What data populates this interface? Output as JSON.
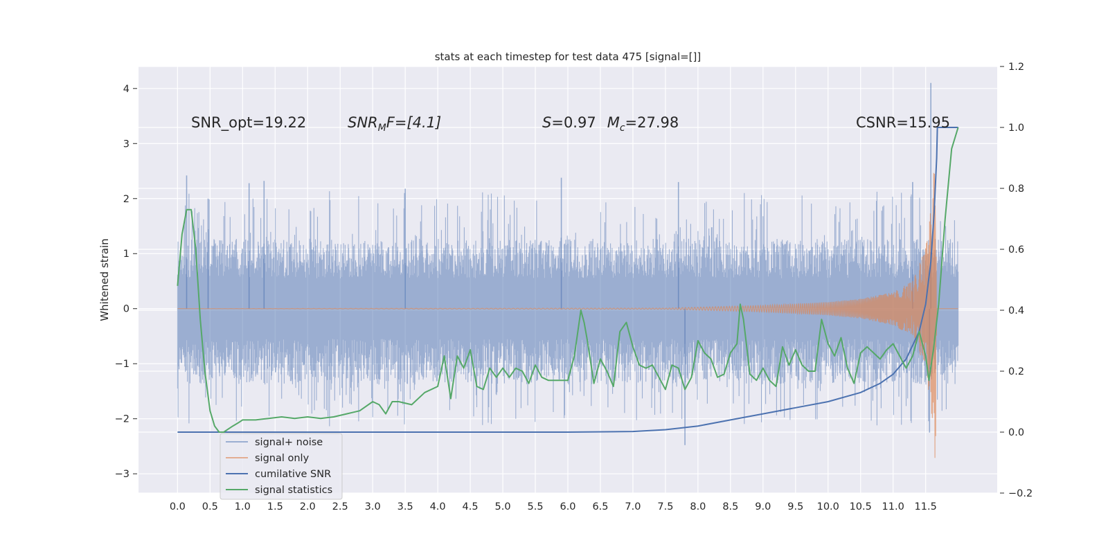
{
  "chart_data": {
    "type": "line",
    "title": "stats at each timestep for test data 475 [signal=[]]",
    "xlabel": "",
    "ylabel": "Whitened strain",
    "xlim": [
      -0.6,
      12.6
    ],
    "ylim": [
      -3.35,
      4.4
    ],
    "ylim_right": [
      -0.2,
      1.2
    ],
    "x_ticks": [
      "0.0",
      "0.5",
      "1.0",
      "1.5",
      "2.0",
      "2.5",
      "3.0",
      "3.5",
      "4.0",
      "4.5",
      "5.0",
      "5.5",
      "6.0",
      "6.5",
      "7.0",
      "7.5",
      "8.0",
      "8.5",
      "9.0",
      "9.5",
      "10.0",
      "10.5",
      "11.0",
      "11.5"
    ],
    "y_ticks_left": [
      "−3",
      "−2",
      "−1",
      "0",
      "1",
      "2",
      "3",
      "4"
    ],
    "y_ticks_right": [
      "−0.2",
      "0.0",
      "0.2",
      "0.4",
      "0.6",
      "0.8",
      "1.0",
      "1.2"
    ],
    "grid": true,
    "background": "#eaeaf2",
    "annotations": {
      "snr_opt": "SNR_opt=19.22",
      "snr_mf_base": "SNR",
      "snr_mf_sub": "M",
      "snr_mf_rest": "F=[4.1]",
      "s_var": "S",
      "s_val": "=0.97",
      "mc_var": "M",
      "mc_sub": "c",
      "mc_val": "=27.98",
      "csnr": "CSNR=15.95"
    },
    "legend": {
      "placement": "lower-left",
      "entries": [
        "signal+ noise",
        "signal only",
        "cumilative SNR",
        "signal statistics"
      ]
    },
    "colors": {
      "noise": "#4c72b0",
      "signal": "#dd8452",
      "cumulative": "#4c72b0",
      "stats": "#55a868"
    },
    "series": [
      {
        "name": "signal+ noise",
        "axis": "left",
        "style": "filled band, high-frequency noise",
        "x_range": [
          0.0,
          12.0
        ],
        "approx_band": [
          -1.4,
          1.3
        ],
        "peak_values": [
          {
            "x": 0.14,
            "y": 2.42
          },
          {
            "x": 0.47,
            "y": 2.0
          },
          {
            "x": 1.1,
            "y": 2.28
          },
          {
            "x": 1.33,
            "y": 2.32
          },
          {
            "x": 3.5,
            "y": 2.18
          },
          {
            "x": 5.9,
            "y": 2.38
          },
          {
            "x": 7.7,
            "y": 2.3
          },
          {
            "x": 7.8,
            "y": -2.48
          },
          {
            "x": 11.3,
            "y": 2.3
          },
          {
            "x": 11.58,
            "y": 4.1
          },
          {
            "x": 11.56,
            "y": -2.25
          }
        ]
      },
      {
        "name": "signal only",
        "axis": "left",
        "style": "chirp oscillation",
        "chirp_envelope": [
          [
            0.0,
            0.0
          ],
          [
            7.5,
            0.01
          ],
          [
            9.0,
            0.06
          ],
          [
            10.0,
            0.12
          ],
          [
            10.5,
            0.18
          ],
          [
            11.0,
            0.3
          ],
          [
            11.3,
            0.5
          ],
          [
            11.5,
            1.1
          ],
          [
            11.6,
            2.0
          ],
          [
            11.65,
            3.0
          ],
          [
            11.67,
            0.0
          ]
        ]
      },
      {
        "name": "cumilative SNR",
        "axis": "right",
        "x": [
          0.0,
          5.0,
          6.0,
          7.0,
          7.5,
          8.0,
          8.5,
          9.0,
          9.5,
          10.0,
          10.5,
          10.8,
          11.0,
          11.2,
          11.4,
          11.5,
          11.58,
          11.63,
          11.67,
          11.68,
          12.0
        ],
        "values": [
          0.0,
          0.0,
          0.0,
          0.002,
          0.008,
          0.02,
          0.04,
          0.06,
          0.08,
          0.1,
          0.13,
          0.16,
          0.19,
          0.24,
          0.33,
          0.42,
          0.56,
          0.72,
          0.9,
          1.0,
          1.0
        ]
      },
      {
        "name": "signal statistics",
        "axis": "right",
        "x": [
          0.0,
          0.07,
          0.14,
          0.21,
          0.28,
          0.35,
          0.42,
          0.5,
          0.57,
          0.64,
          0.71,
          0.78,
          0.85,
          0.93,
          1.0,
          1.1,
          1.2,
          1.4,
          1.6,
          1.8,
          2.0,
          2.2,
          2.4,
          2.6,
          2.8,
          3.0,
          3.1,
          3.2,
          3.3,
          3.4,
          3.6,
          3.8,
          4.0,
          4.1,
          4.2,
          4.3,
          4.4,
          4.5,
          4.6,
          4.7,
          4.8,
          4.9,
          5.0,
          5.1,
          5.2,
          5.3,
          5.4,
          5.5,
          5.6,
          5.7,
          5.8,
          5.9,
          6.0,
          6.1,
          6.2,
          6.25,
          6.3,
          6.4,
          6.5,
          6.6,
          6.7,
          6.8,
          6.9,
          7.0,
          7.1,
          7.2,
          7.3,
          7.4,
          7.5,
          7.6,
          7.7,
          7.8,
          7.9,
          8.0,
          8.1,
          8.2,
          8.3,
          8.4,
          8.5,
          8.6,
          8.65,
          8.7,
          8.8,
          8.9,
          9.0,
          9.1,
          9.2,
          9.3,
          9.4,
          9.5,
          9.6,
          9.7,
          9.8,
          9.9,
          10.0,
          10.1,
          10.2,
          10.3,
          10.4,
          10.5,
          10.6,
          10.7,
          10.8,
          10.9,
          11.0,
          11.1,
          11.2,
          11.3,
          11.4,
          11.5,
          11.55,
          11.62,
          11.7,
          11.8,
          11.9,
          12.0
        ],
        "values": [
          0.48,
          0.65,
          0.73,
          0.73,
          0.6,
          0.37,
          0.2,
          0.07,
          0.02,
          0.0,
          0.0,
          0.01,
          0.02,
          0.03,
          0.04,
          0.04,
          0.04,
          0.045,
          0.05,
          0.045,
          0.05,
          0.045,
          0.05,
          0.06,
          0.07,
          0.1,
          0.09,
          0.06,
          0.1,
          0.1,
          0.09,
          0.13,
          0.15,
          0.25,
          0.11,
          0.25,
          0.21,
          0.27,
          0.15,
          0.14,
          0.21,
          0.18,
          0.21,
          0.18,
          0.21,
          0.2,
          0.16,
          0.22,
          0.18,
          0.17,
          0.17,
          0.17,
          0.17,
          0.25,
          0.4,
          0.36,
          0.3,
          0.16,
          0.24,
          0.2,
          0.15,
          0.33,
          0.36,
          0.28,
          0.22,
          0.21,
          0.22,
          0.18,
          0.14,
          0.22,
          0.21,
          0.14,
          0.18,
          0.3,
          0.26,
          0.24,
          0.18,
          0.19,
          0.26,
          0.29,
          0.42,
          0.37,
          0.19,
          0.17,
          0.21,
          0.17,
          0.15,
          0.28,
          0.22,
          0.27,
          0.22,
          0.2,
          0.2,
          0.37,
          0.29,
          0.25,
          0.31,
          0.21,
          0.16,
          0.26,
          0.28,
          0.26,
          0.24,
          0.27,
          0.29,
          0.25,
          0.21,
          0.25,
          0.33,
          0.25,
          0.17,
          0.27,
          0.42,
          0.7,
          0.93,
          1.0
        ]
      }
    ]
  }
}
